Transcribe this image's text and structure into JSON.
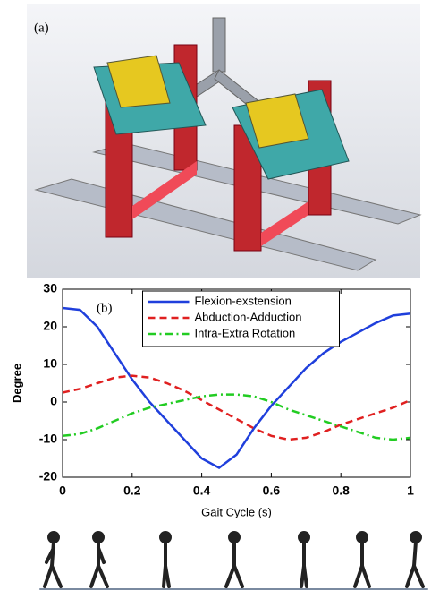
{
  "panel_a_label": "(a)",
  "chart_data": {
    "type": "line",
    "annotation": "(b)",
    "xlabel": "Gait Cycle (s)",
    "ylabel": "Degree",
    "x": [
      0,
      0.05,
      0.1,
      0.15,
      0.2,
      0.25,
      0.3,
      0.35,
      0.4,
      0.45,
      0.5,
      0.55,
      0.6,
      0.65,
      0.7,
      0.75,
      0.8,
      0.85,
      0.9,
      0.95,
      1
    ],
    "series": [
      {
        "name": "Flexion-exstension",
        "color": "#1f3fdc",
        "style": "solid",
        "values": [
          25,
          24.5,
          20,
          13,
          6,
          0,
          -5,
          -10,
          -15,
          -17.5,
          -14,
          -7,
          -1,
          4,
          9,
          13,
          16,
          18.5,
          21,
          23,
          23.5
        ]
      },
      {
        "name": "Abduction-Adduction",
        "color": "#e02020",
        "style": "dashed",
        "values": [
          2.5,
          3.5,
          5,
          6.5,
          7,
          6.5,
          5,
          3,
          0.5,
          -2,
          -4.5,
          -7,
          -9,
          -10,
          -9.5,
          -8,
          -6,
          -4.5,
          -3,
          -1.5,
          0.5
        ]
      },
      {
        "name": "Intra-Extra Rotation",
        "color": "#22cc22",
        "style": "dashdot",
        "values": [
          -9,
          -8.5,
          -7,
          -5,
          -3,
          -1.5,
          -0.5,
          0.5,
          1.5,
          2,
          2,
          1.5,
          0,
          -2,
          -3.5,
          -5,
          -6.5,
          -8,
          -9.5,
          -10,
          -9.5
        ]
      }
    ],
    "xlim": [
      0,
      1
    ],
    "xticks": [
      0,
      0.2,
      0.4,
      0.6,
      0.8,
      1
    ],
    "ylim": [
      -20,
      30
    ],
    "yticks": [
      -20,
      -10,
      0,
      10,
      20,
      30
    ],
    "legend": "upper center"
  }
}
